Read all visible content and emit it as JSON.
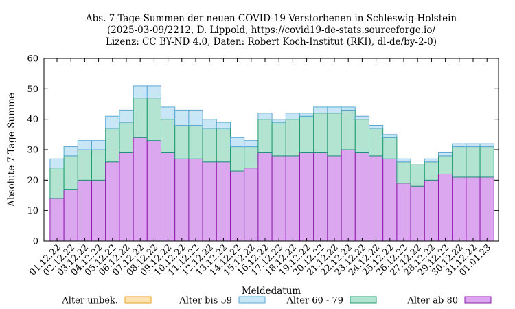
{
  "chart_data": {
    "type": "bar",
    "stacked": true,
    "title_lines": [
      "Abs. 7-Tage-Summen der neuen COVID-19 Verstorbenen in Schleswig-Holstein",
      "(2025-03-09/2212, D. Lippold, https://covid19-de-stats.sourceforge.io/",
      "Lizenz: CC BY-ND 4.0, Daten: Robert Koch-Institut (RKI), dl-de/by-2-0)"
    ],
    "xlabel": "Meldedatum",
    "ylabel": "Absolute 7-Tage-Summe",
    "ylim": [
      0,
      60
    ],
    "yticks": [
      0,
      10,
      20,
      30,
      40,
      50,
      60
    ],
    "grid": false,
    "legend_position": "bottom",
    "categories": [
      "01.12.22",
      "02.12.22",
      "03.12.22",
      "04.12.22",
      "05.12.22",
      "06.12.22",
      "07.12.22",
      "08.12.22",
      "09.12.22",
      "10.12.22",
      "11.12.22",
      "12.12.22",
      "13.12.22",
      "14.12.22",
      "15.12.22",
      "16.12.22",
      "17.12.22",
      "18.12.22",
      "19.12.22",
      "20.12.22",
      "21.12.22",
      "22.12.22",
      "23.12.22",
      "24.12.22",
      "25.12.22",
      "26.12.22",
      "27.12.22",
      "28.12.22",
      "29.12.22",
      "30.12.22",
      "31.12.22",
      "01.01.23"
    ],
    "series": [
      {
        "name": "Alter ab 80",
        "color": "#dba8f0",
        "stroke": "#8e1dab",
        "values": [
          14,
          17,
          20,
          20,
          26,
          29,
          34,
          33,
          29,
          27,
          27,
          26,
          26,
          23,
          24,
          29,
          28,
          28,
          29,
          29,
          28,
          30,
          29,
          28,
          27,
          19,
          18,
          20,
          22,
          21,
          21,
          21
        ]
      },
      {
        "name": "Alter 60 - 79",
        "color": "#b3e3d1",
        "stroke": "#1f9a74",
        "values": [
          10,
          11,
          10,
          10,
          11,
          10,
          13,
          14,
          11,
          11,
          11,
          11,
          11,
          8,
          7,
          11,
          11,
          12,
          12,
          13,
          14,
          13,
          11,
          9,
          7,
          7,
          7,
          6,
          6,
          10,
          10,
          10
        ]
      },
      {
        "name": "Alter bis 59",
        "color": "#c9e6f6",
        "stroke": "#5aa8d6",
        "values": [
          3,
          3,
          3,
          3,
          4,
          4,
          4,
          4,
          4,
          5,
          5,
          3,
          2,
          3,
          2,
          2,
          1,
          2,
          1,
          2,
          2,
          1,
          1,
          1,
          1,
          1,
          0,
          1,
          1,
          1,
          1,
          1
        ]
      },
      {
        "name": "Alter unbek.",
        "color": "#fde3ad",
        "stroke": "#e8a21e",
        "values": [
          0,
          0,
          0,
          0,
          0,
          0,
          0,
          0,
          0,
          0,
          0,
          0,
          0,
          0,
          0,
          0,
          0,
          0,
          0,
          0,
          0,
          0,
          0,
          0,
          0,
          0,
          0,
          0,
          0,
          0,
          0,
          0
        ]
      }
    ],
    "legend_order": [
      "Alter unbek.",
      "Alter bis 59",
      "Alter 60 - 79",
      "Alter ab 80"
    ]
  }
}
